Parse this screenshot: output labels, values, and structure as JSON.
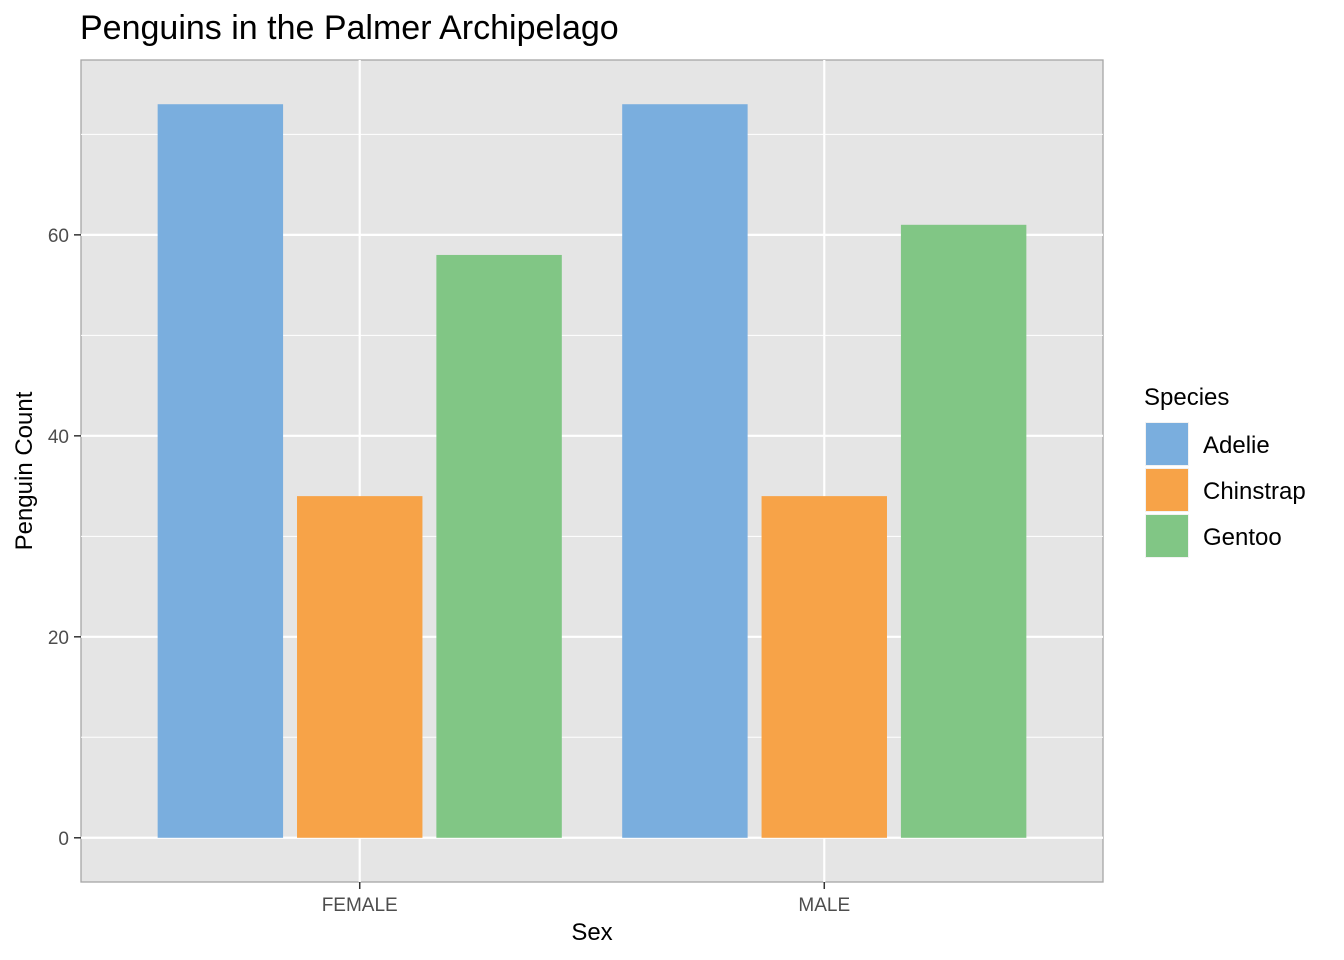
{
  "chart_data": {
    "type": "bar",
    "title": "Penguins in the Palmer Archipelago",
    "xlabel": "Sex",
    "ylabel": "Penguin Count",
    "categories": [
      "FEMALE",
      "MALE"
    ],
    "series": [
      {
        "name": "Adelie",
        "color": "#7aaede",
        "values": [
          73,
          73
        ]
      },
      {
        "name": "Chinstrap",
        "color": "#f7a348",
        "values": [
          34,
          34
        ]
      },
      {
        "name": "Gentoo",
        "color": "#81c685",
        "values": [
          58,
          61
        ]
      }
    ],
    "ylim": [
      -4.4,
      77.4
    ],
    "yticks": [
      0,
      20,
      40,
      60
    ],
    "grid": true,
    "legend": {
      "title": "Species",
      "position": "right"
    },
    "panel_background": "#e5e5e5",
    "grid_color": "#ffffff"
  }
}
